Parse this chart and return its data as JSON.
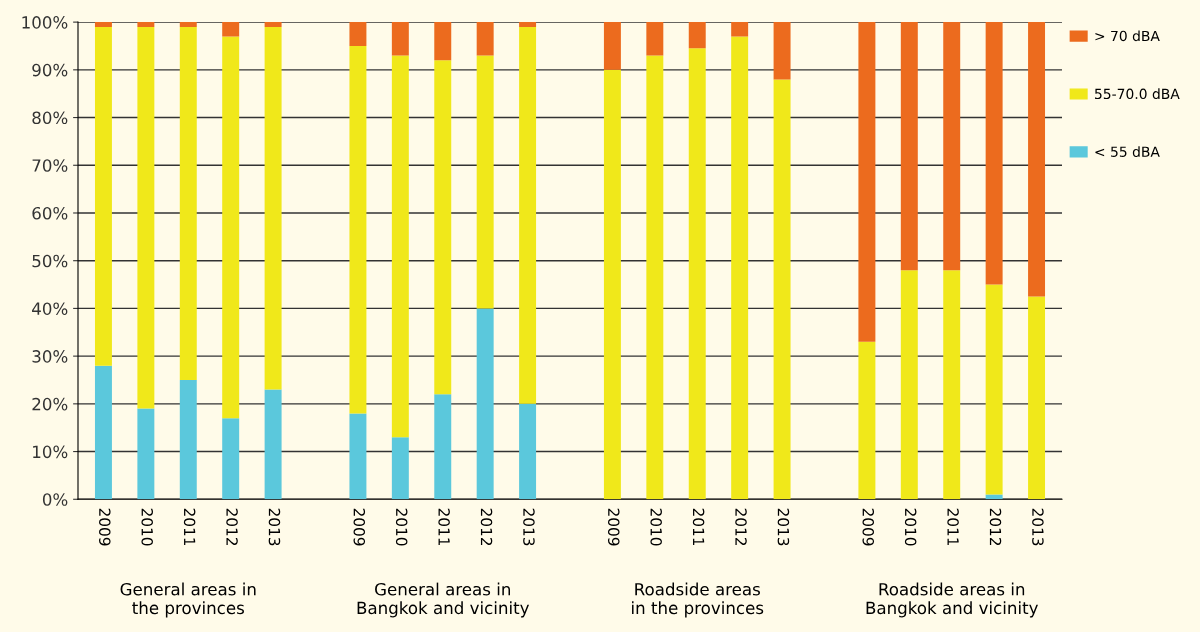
{
  "chart_data": {
    "type": "bar",
    "stacked": true,
    "categories": [
      "2009",
      "2010",
      "2011",
      "2012",
      "2013",
      null,
      "2009",
      "2010",
      "2011",
      "2012",
      "2013",
      null,
      "2009",
      "2010",
      "2011",
      "2012",
      "2013",
      null,
      "2009",
      "2010",
      "2011",
      "2012",
      "2013"
    ],
    "series": [
      {
        "name": "< 55 dBA",
        "color": "#5bc8dc",
        "values": [
          28,
          19,
          25,
          17,
          23,
          null,
          18,
          13,
          22,
          40,
          20,
          null,
          0,
          0,
          0,
          0,
          0,
          null,
          0,
          0,
          0,
          1,
          0
        ]
      },
      {
        "name": "55-70.0 dBA",
        "color": "#f0e81a",
        "values": [
          71,
          80,
          74,
          80,
          76,
          null,
          77,
          80,
          70,
          53,
          79,
          null,
          90,
          93,
          94.5,
          97,
          88,
          null,
          33,
          48,
          48,
          44,
          42.5
        ]
      },
      {
        "name": "> 70 dBA",
        "color": "#ec6b1e",
        "values": [
          1,
          1,
          1,
          3,
          1,
          null,
          5,
          7,
          8,
          7,
          1,
          null,
          10,
          7,
          5.5,
          3,
          12,
          null,
          67,
          52,
          52,
          55,
          57.5
        ]
      }
    ],
    "ylim": [
      0,
      100
    ],
    "yticks": [
      {
        "value": 0,
        "label": "0%"
      },
      {
        "value": 10,
        "label": "10%"
      },
      {
        "value": 20,
        "label": "20%"
      },
      {
        "value": 30,
        "label": "30%"
      },
      {
        "value": 40,
        "label": "40%"
      },
      {
        "value": 50,
        "label": "50%"
      },
      {
        "value": 60,
        "label": "60%"
      },
      {
        "value": 70,
        "label": "70%"
      },
      {
        "value": 80,
        "label": "80%"
      },
      {
        "value": 90,
        "label": "90%"
      },
      {
        "value": 100,
        "label": "100%"
      }
    ],
    "grid": "y",
    "legend": "right",
    "annotations": [
      "General areas in\nthe provinces",
      "General areas in\nBangkok and vicinity",
      "Roadside areas\nin the provinces",
      "Roadside areas in\nBangkok and vicinity"
    ]
  }
}
